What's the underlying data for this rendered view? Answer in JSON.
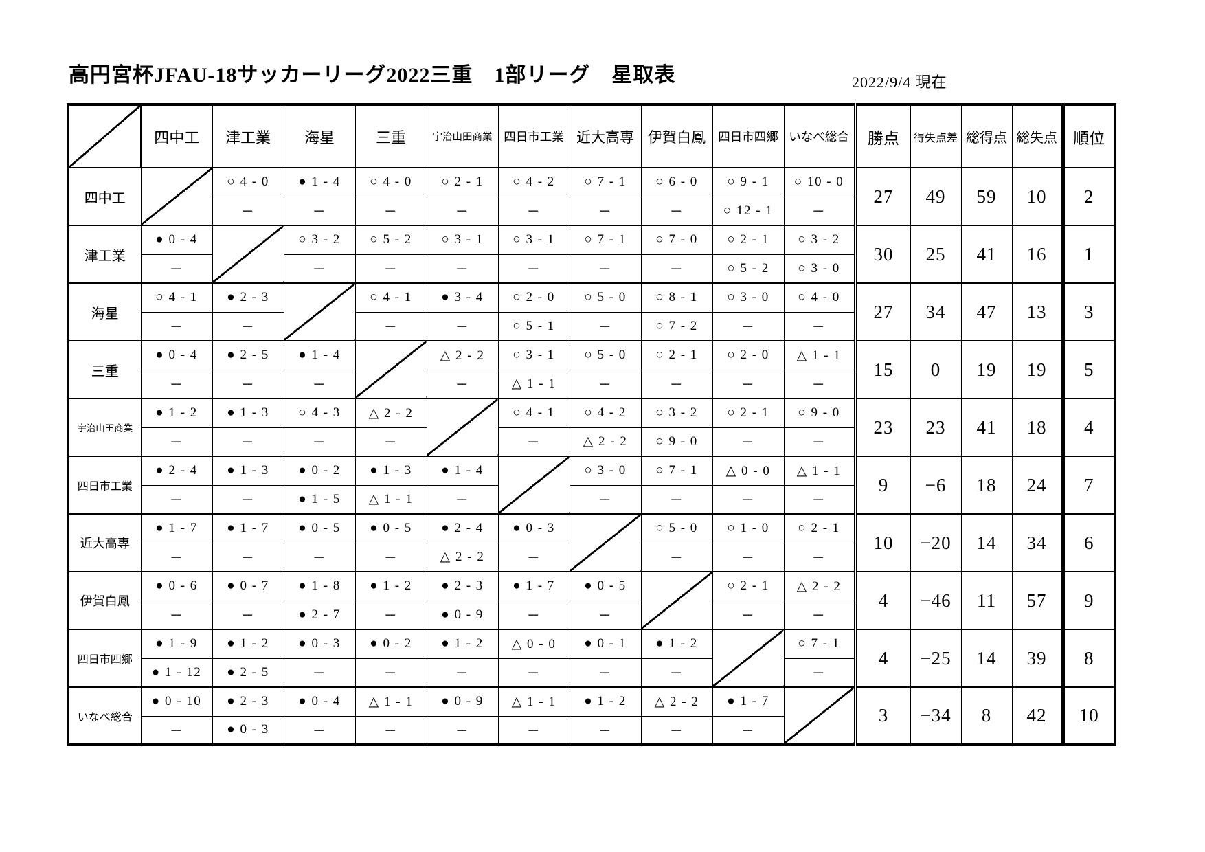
{
  "title": "高円宮杯JFAU-18サッカーリーグ2022三重　1部リーグ　星取表",
  "date_note": "2022/9/4 現在",
  "symbols": {
    "win": "○",
    "draw": "△",
    "loss": "●",
    "not_played": "－"
  },
  "table": {
    "opponents": [
      "四中工",
      "津工業",
      "海星",
      "三重",
      "宇治山田商業",
      "四日市工業",
      "近大高専",
      "伊賀白鳳",
      "四日市四郷",
      "いなべ総合"
    ],
    "stat_headers": [
      "勝点",
      "得失点差",
      "総得点",
      "総失点",
      "順位"
    ],
    "rows": [
      {
        "team": "四中工",
        "results": [
          null,
          [
            "○ 4 - 0",
            "－"
          ],
          [
            "● 1 - 4",
            "－"
          ],
          [
            "○ 4 - 0",
            "－"
          ],
          [
            "○ 2 - 1",
            "－"
          ],
          [
            "○ 4 - 2",
            "－"
          ],
          [
            "○ 7 - 1",
            "－"
          ],
          [
            "○ 6 - 0",
            "－"
          ],
          [
            "○ 9 - 1",
            "○ 12 - 1"
          ],
          [
            "○ 10 - 0",
            "－"
          ]
        ],
        "stats": [
          "27",
          "49",
          "59",
          "10",
          "2"
        ]
      },
      {
        "team": "津工業",
        "results": [
          [
            "● 0 - 4",
            "－"
          ],
          null,
          [
            "○ 3 - 2",
            "－"
          ],
          [
            "○ 5 - 2",
            "－"
          ],
          [
            "○ 3 - 1",
            "－"
          ],
          [
            "○ 3 - 1",
            "－"
          ],
          [
            "○ 7 - 1",
            "－"
          ],
          [
            "○ 7 - 0",
            "－"
          ],
          [
            "○ 2 - 1",
            "○ 5 - 2"
          ],
          [
            "○ 3 - 2",
            "○ 3 - 0"
          ]
        ],
        "stats": [
          "30",
          "25",
          "41",
          "16",
          "1"
        ]
      },
      {
        "team": "海星",
        "results": [
          [
            "○ 4 - 1",
            "－"
          ],
          [
            "● 2 - 3",
            "－"
          ],
          null,
          [
            "○ 4 - 1",
            "－"
          ],
          [
            "● 3 - 4",
            "－"
          ],
          [
            "○ 2 - 0",
            "○ 5 - 1"
          ],
          [
            "○ 5 - 0",
            "－"
          ],
          [
            "○ 8 - 1",
            "○ 7 - 2"
          ],
          [
            "○ 3 - 0",
            "－"
          ],
          [
            "○ 4 - 0",
            "－"
          ]
        ],
        "stats": [
          "27",
          "34",
          "47",
          "13",
          "3"
        ]
      },
      {
        "team": "三重",
        "results": [
          [
            "● 0 - 4",
            "－"
          ],
          [
            "● 2 - 5",
            "－"
          ],
          [
            "● 1 - 4",
            "－"
          ],
          null,
          [
            "△ 2 - 2",
            "－"
          ],
          [
            "○ 3 - 1",
            "△ 1 - 1"
          ],
          [
            "○ 5 - 0",
            "－"
          ],
          [
            "○ 2 - 1",
            "－"
          ],
          [
            "○ 2 - 0",
            "－"
          ],
          [
            "△ 1 - 1",
            "－"
          ]
        ],
        "stats": [
          "15",
          "0",
          "19",
          "19",
          "5"
        ]
      },
      {
        "team": "宇治山田商業",
        "results": [
          [
            "● 1 - 2",
            "－"
          ],
          [
            "● 1 - 3",
            "－"
          ],
          [
            "○ 4 - 3",
            "－"
          ],
          [
            "△ 2 - 2",
            "－"
          ],
          null,
          [
            "○ 4 - 1",
            "－"
          ],
          [
            "○ 4 - 2",
            "△ 2 - 2"
          ],
          [
            "○ 3 - 2",
            "○ 9 - 0"
          ],
          [
            "○ 2 - 1",
            "－"
          ],
          [
            "○ 9 - 0",
            "－"
          ]
        ],
        "stats": [
          "23",
          "23",
          "41",
          "18",
          "4"
        ]
      },
      {
        "team": "四日市工業",
        "results": [
          [
            "● 2 - 4",
            "－"
          ],
          [
            "● 1 - 3",
            "－"
          ],
          [
            "● 0 - 2",
            "● 1 - 5"
          ],
          [
            "● 1 - 3",
            "△ 1 - 1"
          ],
          [
            "● 1 - 4",
            "－"
          ],
          null,
          [
            "○ 3 - 0",
            "－"
          ],
          [
            "○ 7 - 1",
            "－"
          ],
          [
            "△ 0 - 0",
            "－"
          ],
          [
            "△ 1 - 1",
            "－"
          ]
        ],
        "stats": [
          "9",
          "−6",
          "18",
          "24",
          "7"
        ]
      },
      {
        "team": "近大高専",
        "results": [
          [
            "● 1 - 7",
            "－"
          ],
          [
            "● 1 - 7",
            "－"
          ],
          [
            "● 0 - 5",
            "－"
          ],
          [
            "● 0 - 5",
            "－"
          ],
          [
            "● 2 - 4",
            "△ 2 - 2"
          ],
          [
            "● 0 - 3",
            "－"
          ],
          null,
          [
            "○ 5 - 0",
            "－"
          ],
          [
            "○ 1 - 0",
            "－"
          ],
          [
            "○ 2 - 1",
            "－"
          ]
        ],
        "stats": [
          "10",
          "−20",
          "14",
          "34",
          "6"
        ]
      },
      {
        "team": "伊賀白鳳",
        "results": [
          [
            "● 0 - 6",
            "－"
          ],
          [
            "● 0 - 7",
            "－"
          ],
          [
            "● 1 - 8",
            "● 2 - 7"
          ],
          [
            "● 1 - 2",
            "－"
          ],
          [
            "● 2 - 3",
            "● 0 - 9"
          ],
          [
            "● 1 - 7",
            "－"
          ],
          [
            "● 0 - 5",
            "－"
          ],
          null,
          [
            "○ 2 - 1",
            "－"
          ],
          [
            "△ 2 - 2",
            "－"
          ]
        ],
        "stats": [
          "4",
          "−46",
          "11",
          "57",
          "9"
        ]
      },
      {
        "team": "四日市四郷",
        "results": [
          [
            "● 1 - 9",
            "● 1 - 12"
          ],
          [
            "● 1 - 2",
            "● 2 - 5"
          ],
          [
            "● 0 - 3",
            "－"
          ],
          [
            "● 0 - 2",
            "－"
          ],
          [
            "● 1 - 2",
            "－"
          ],
          [
            "△ 0 - 0",
            "－"
          ],
          [
            "● 0 - 1",
            "－"
          ],
          [
            "● 1 - 2",
            "－"
          ],
          null,
          [
            "○ 7 - 1",
            "－"
          ]
        ],
        "stats": [
          "4",
          "−25",
          "14",
          "39",
          "8"
        ]
      },
      {
        "team": "いなべ総合",
        "results": [
          [
            "● 0 - 10",
            "－"
          ],
          [
            "● 2 - 3",
            "● 0 - 3"
          ],
          [
            "● 0 - 4",
            "－"
          ],
          [
            "△ 1 - 1",
            "－"
          ],
          [
            "● 0 - 9",
            "－"
          ],
          [
            "△ 1 - 1",
            "－"
          ],
          [
            "● 1 - 2",
            "－"
          ],
          [
            "△ 2 - 2",
            "－"
          ],
          [
            "● 1 - 7",
            "－"
          ],
          null
        ],
        "stats": [
          "3",
          "−34",
          "8",
          "42",
          "10"
        ]
      }
    ]
  }
}
